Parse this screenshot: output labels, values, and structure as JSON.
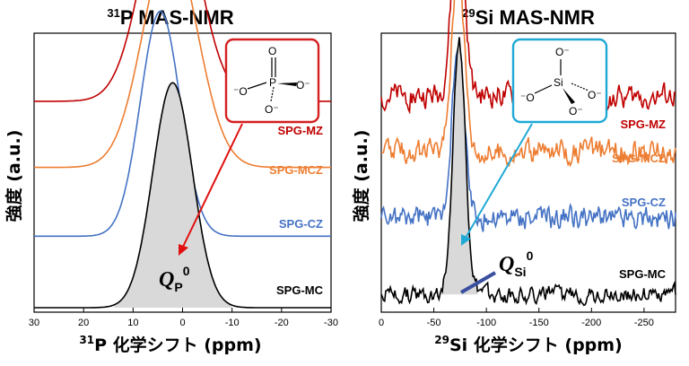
{
  "chart_data": [
    {
      "type": "line",
      "title_sup": "31",
      "title": "P MAS-NMR",
      "xlabel_sup": "31",
      "xlabel": "P 化学シフト (ppm)",
      "ylabel": "強度 (a.u.)",
      "xlim": [
        30,
        -30
      ],
      "xticks": [
        "30",
        "20",
        "10",
        "0",
        "-10",
        "-20",
        "-30"
      ],
      "xtick_values": [
        30,
        20,
        10,
        0,
        -10,
        -20,
        -30
      ],
      "annotation_main": "Q",
      "annotation_sub": "P",
      "annotation_sup": "0",
      "inset": {
        "center": "P",
        "oxygens": [
          "O",
          "⁻O",
          "O⁻",
          "O⁻"
        ]
      },
      "series": [
        {
          "name": "SPG-MZ",
          "color": "#c00000",
          "peak_ppm": 2.5,
          "width_ppm": 5.5,
          "baseline": 0.78,
          "amplitude": 0.85,
          "noise": 0
        },
        {
          "name": "SPG-MCZ",
          "color": "#ed7d31",
          "peak_ppm": 2.5,
          "width_ppm": 5.5,
          "baseline": 0.53,
          "amplitude": 0.85,
          "noise": 0
        },
        {
          "name": "SPG-CZ",
          "color": "#4472c4",
          "peak_ppm": 4.5,
          "width_ppm": 4.0,
          "baseline": 0.27,
          "amplitude": 0.85,
          "noise": 0
        },
        {
          "name": "SPG-MC",
          "color": "#000000",
          "peak_ppm": 2.0,
          "width_ppm": 4.0,
          "baseline": 0.0,
          "amplitude": 0.85,
          "noise": 0,
          "filled": true
        }
      ]
    },
    {
      "type": "line",
      "title_sup": "29",
      "title": "Si MAS-NMR",
      "xlabel_sup": "29",
      "xlabel": "Si 化学シフト (ppm)",
      "ylabel": "強度 (a.u.)",
      "xlim": [
        0,
        -280
      ],
      "xticks": [
        "0",
        "-50",
        "-100",
        "-150",
        "-200",
        "-250"
      ],
      "xtick_values": [
        0,
        -50,
        -100,
        -150,
        -200,
        -250
      ],
      "annotation_main": "Q",
      "annotation_sub": "Si",
      "annotation_sup": "0",
      "inset": {
        "center": "Si",
        "oxygens": [
          "O⁻",
          "⁻O",
          "O⁻",
          "O⁻"
        ]
      },
      "series": [
        {
          "name": "SPG-MZ",
          "color": "#c00000",
          "peak_ppm": -73,
          "width_ppm": 6,
          "baseline": 0.8,
          "amplitude": 0.7,
          "noise": 0.07
        },
        {
          "name": "SPG-MCZ",
          "color": "#ed7d31",
          "peak_ppm": -73,
          "width_ppm": 6,
          "baseline": 0.59,
          "amplitude": 0.7,
          "noise": 0.07
        },
        {
          "name": "SPG-CZ",
          "color": "#4472c4",
          "peak_ppm": -73,
          "width_ppm": 6,
          "baseline": 0.34,
          "amplitude": 0.62,
          "noise": 0.07
        },
        {
          "name": "SPG-MC",
          "color": "#000000",
          "peak_ppm": -74,
          "width_ppm": 6,
          "baseline": 0.05,
          "amplitude": 0.95,
          "noise": 0.05,
          "filled": true
        }
      ]
    }
  ]
}
